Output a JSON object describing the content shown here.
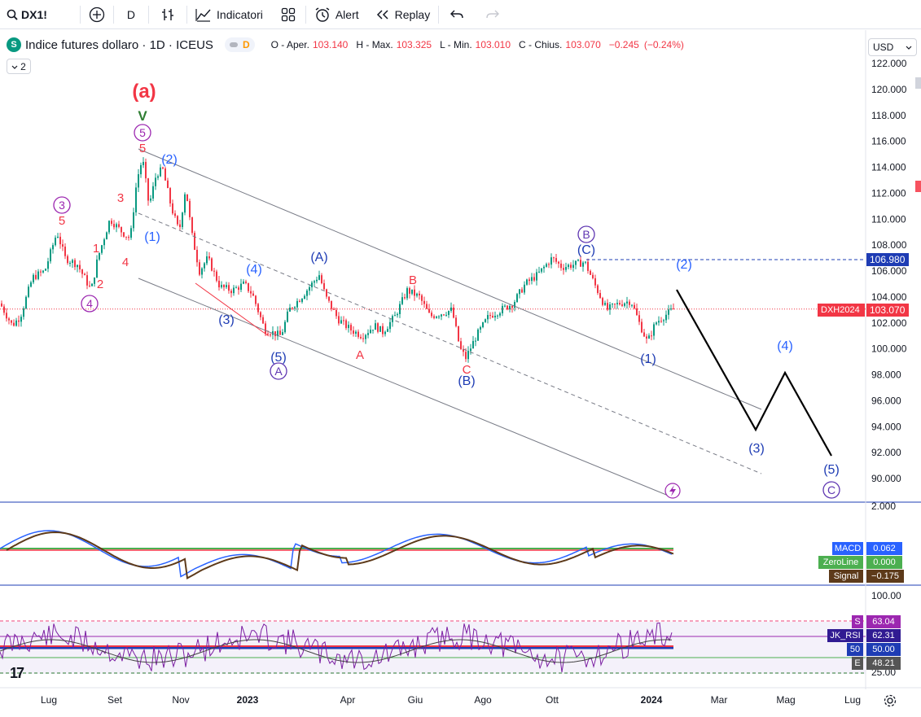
{
  "toolbar": {
    "symbol": "DX1!",
    "interval": "D",
    "indicators_label": "Indicatori",
    "alert_label": "Alert",
    "replay_label": "Replay"
  },
  "legend": {
    "symbol_badge": "S",
    "title": "Indice futures dollaro · 1D · ICEUS",
    "pill_letter": "D",
    "ohlc": {
      "open_label": "O - Aper.",
      "open": "103.140",
      "high_label": "H - Max.",
      "high": "103.325",
      "low_label": "L - Min.",
      "low": "103.010",
      "close_label": "C - Chius.",
      "close": "103.070",
      "change": "−0.245",
      "change_pct": "(−0.24%)"
    },
    "collapse_count": "2"
  },
  "currency": "USD",
  "price_axis": {
    "ticks": [
      "122.000",
      "120.000",
      "118.000",
      "116.000",
      "114.000",
      "112.000",
      "110.000",
      "108.000",
      "106.000",
      "104.000",
      "102.000",
      "100.000",
      "98.000",
      "96.000",
      "94.000",
      "92.000",
      "90.000"
    ],
    "level_label": "106.980",
    "symbol_tag": "DXH2024",
    "last_price": "103.070"
  },
  "time_axis": {
    "ticks": [
      "Lug",
      "Set",
      "Nov",
      "2023",
      "Apr",
      "Giu",
      "Ago",
      "Ott",
      "2024",
      "Mar",
      "Mag",
      "Lug"
    ]
  },
  "macd": {
    "axis_top": "2.000",
    "labels": [
      {
        "name": "MACD",
        "value": "0.062",
        "color": "#2962ff"
      },
      {
        "name": "ZeroLine",
        "value": "0.000",
        "color": "#4caf50"
      },
      {
        "name": "Signal",
        "value": "−0.175",
        "color": "#5d3a1a"
      }
    ]
  },
  "rsi": {
    "axis_top": "100.00",
    "axis_bottom": "25.00",
    "labels": [
      {
        "name": "S",
        "value": "63.04",
        "color": "#9c27b0"
      },
      {
        "name": "JK_RSI",
        "value": "62.31",
        "color": "#311b92"
      },
      {
        "name": "50",
        "value": "50.00",
        "color": "#1e3cb4"
      },
      {
        "name": "E",
        "value": "48.21",
        "color": "#555555"
      }
    ]
  },
  "wave_labels": {
    "big_a": "(a)",
    "roman_v": "V",
    "circ_5": "5",
    "circ_3": "3",
    "circ_4": "4",
    "red_5a": "5",
    "red_5b": "5",
    "red_3": "3",
    "red_1": "1",
    "red_2": "2",
    "red_4": "4",
    "blue_2_top": "(2)",
    "blue_1_top": "(1)",
    "blue_4": "(4)",
    "blue_3": "(3)",
    "blue_5": "(5)",
    "circ_A": "A",
    "blue_A_paren": "(A)",
    "red_A": "A",
    "red_B": "B",
    "red_C": "C",
    "blue_B_paren": "(B)",
    "circ_B": "B",
    "blue_C_paren": "(C)",
    "blue_1_recent": "(1)",
    "proj_2": "(2)",
    "proj_3": "(3)",
    "proj_4": "(4)",
    "proj_5": "(5)",
    "circ_C": "C"
  },
  "colors": {
    "bull": "#089981",
    "bear": "#f23645",
    "wave_blue": "#2962ff",
    "wave_red": "#f23645",
    "wave_purple": "#9c27b0",
    "channel": "#787b86"
  }
}
